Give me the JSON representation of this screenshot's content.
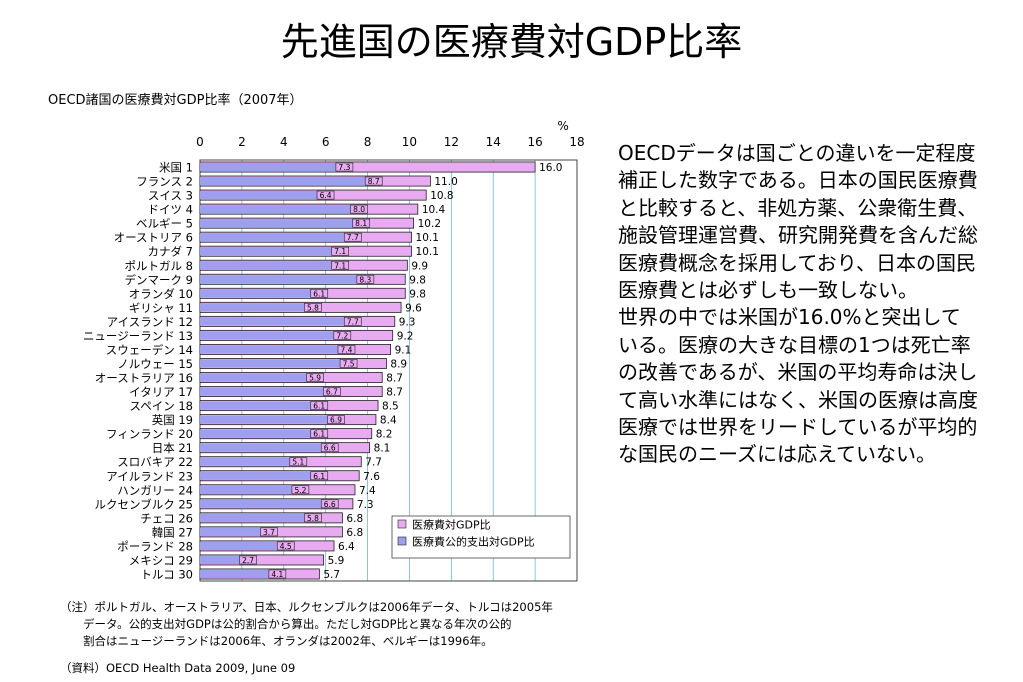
{
  "page": {
    "title": "先進国の医療費対GDP比率",
    "body_text": "OECDデータは国ごとの違いを一定程度補正した数字である。日本の国民医療費と比較すると、非処方薬、公衆衛生費、施設管理運営費、研究開発費を含んだ総医療費概念を採用しており、日本の国民医療費とは必ずしも一致しない。\n世界の中では米国が16.0%と突出している。医療の大きな目標の1つは死亡率の改善であるが、米国の平均寿命は決して高い水準にはなく、米国の医療は高度医療では世界をリードしているが平均的な国民のニーズには応えていない。",
    "note": "（注）ポルトガル、オーストラリア、日本、ルクセンブルクは2006年データ、トルコは2005年\n　　データ。公的支出対GDPは公的割合から算出。ただし対GDP比と異なる年次の公的\n　　割合はニュージーランドは2006年、オランダは2002年、ベルギーは1996年。",
    "source": "（資料）OECD Health Data 2009, June 09"
  },
  "chart_data": {
    "type": "bar",
    "orientation": "horizontal",
    "title": "OECD諸国の医療費対GDP比率（2007年）",
    "unit": "%",
    "xlim": [
      0,
      18
    ],
    "xticks": [
      0,
      2,
      4,
      6,
      8,
      10,
      12,
      14,
      16,
      18
    ],
    "grid": true,
    "legend_position": "bottom-right",
    "categories": [
      "米国 1",
      "フランス 2",
      "スイス 3",
      "ドイツ 4",
      "ベルギー 5",
      "オーストリア 6",
      "カナダ 7",
      "ポルトガル 8",
      "デンマーク 9",
      "オランダ 10",
      "ギリシャ 11",
      "アイスランド 12",
      "ニュージーランド 13",
      "スウェーデン 14",
      "ノルウェー 15",
      "オーストラリア 16",
      "イタリア 17",
      "スペイン 18",
      "英国 19",
      "フィンランド 20",
      "日本 21",
      "スロバキア 22",
      "アイルランド 23",
      "ハンガリー 24",
      "ルクセンブルク 25",
      "チェコ 26",
      "韓国 27",
      "ポーランド 28",
      "メキシコ 29",
      "トルコ 30"
    ],
    "series": [
      {
        "name": "医療費対GDP比",
        "color": "#e8aaf0",
        "values": [
          16.0,
          11.0,
          10.8,
          10.4,
          10.2,
          10.1,
          10.1,
          9.9,
          9.8,
          9.8,
          9.6,
          9.3,
          9.2,
          9.1,
          8.9,
          8.7,
          8.7,
          8.5,
          8.4,
          8.2,
          8.1,
          7.7,
          7.6,
          7.4,
          7.3,
          6.8,
          6.8,
          6.4,
          5.9,
          5.7
        ]
      },
      {
        "name": "医療費公的支出対GDP比",
        "color": "#9f9ff0",
        "values": [
          7.3,
          8.7,
          6.4,
          8.0,
          8.1,
          7.7,
          7.1,
          7.1,
          8.3,
          6.1,
          5.8,
          7.7,
          7.2,
          7.4,
          7.5,
          5.9,
          6.7,
          6.1,
          6.9,
          6.1,
          6.6,
          5.1,
          6.1,
          5.2,
          6.6,
          5.8,
          3.7,
          4.5,
          2.7,
          4.1
        ]
      }
    ]
  }
}
